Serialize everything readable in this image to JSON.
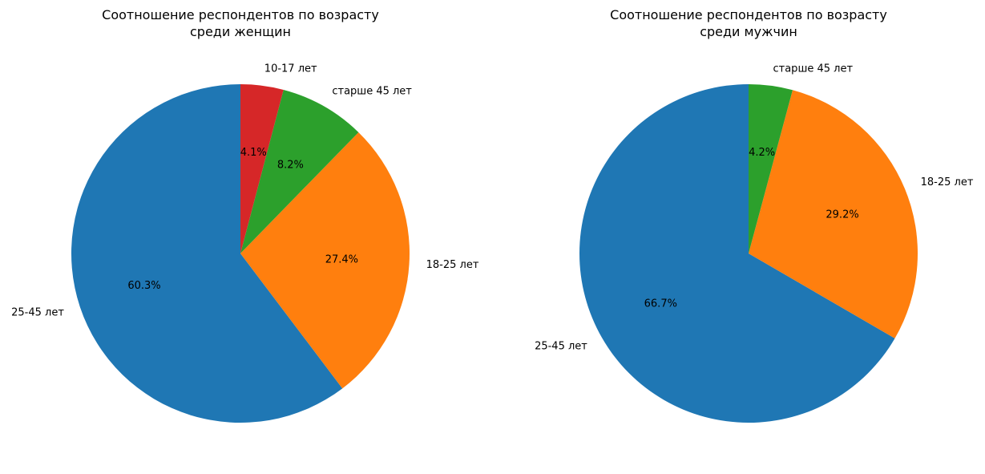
{
  "chart_data": [
    {
      "type": "pie",
      "title_lines": [
        "Соотношение респондентов по возрасту",
        "среди женщин"
      ],
      "start_angle_deg": 90,
      "direction": "counterclockwise",
      "slices": [
        {
          "label": "25-45 лет",
          "value": 60.3,
          "pct_label": "60.3%",
          "color": "#1f77b4"
        },
        {
          "label": "18-25 лет",
          "value": 27.4,
          "pct_label": "27.4%",
          "color": "#ff7f0e"
        },
        {
          "label": "старше 45 лет",
          "value": 8.2,
          "pct_label": "8.2%",
          "color": "#2ca02c"
        },
        {
          "label": "10-17 лет",
          "value": 4.1,
          "pct_label": "4.1%",
          "color": "#d62728"
        }
      ]
    },
    {
      "type": "pie",
      "title_lines": [
        "Соотношение респондентов по возрасту",
        "среди мужчин"
      ],
      "start_angle_deg": 90,
      "direction": "counterclockwise",
      "slices": [
        {
          "label": "25-45 лет",
          "value": 66.7,
          "pct_label": "66.7%",
          "color": "#1f77b4"
        },
        {
          "label": "18-25 лет",
          "value": 29.2,
          "pct_label": "29.2%",
          "color": "#ff7f0e"
        },
        {
          "label": "старше 45 лет",
          "value": 4.2,
          "pct_label": "4.2%",
          "color": "#2ca02c"
        }
      ]
    }
  ]
}
